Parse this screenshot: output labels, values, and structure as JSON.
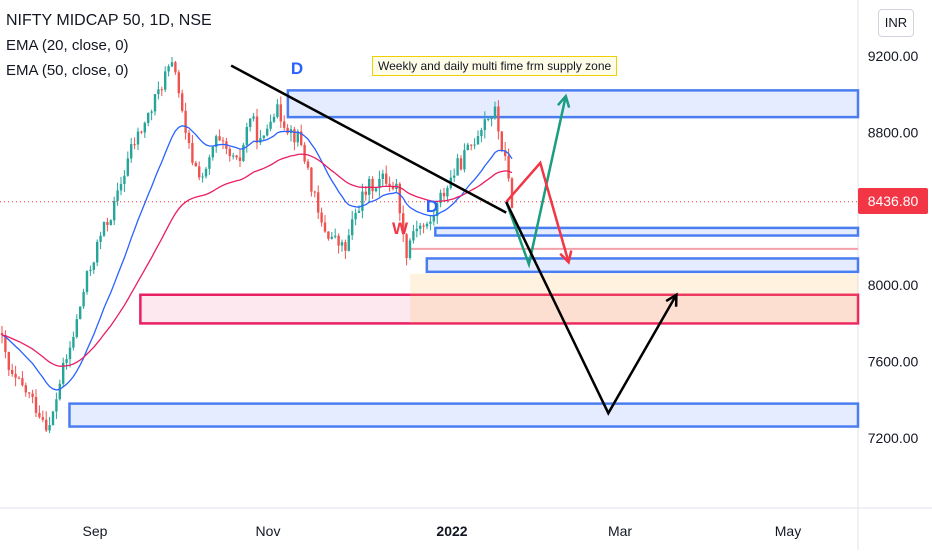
{
  "header": {
    "title": "NIFTY MIDCAP 50, 1D, NSE",
    "ema20": "EMA (20, close, 0)",
    "ema50": "EMA (50, close, 0)",
    "currency": "INR"
  },
  "note": "Weekly and daily multi fime frm supply zone",
  "price_label": "8436.80",
  "markers": {
    "d1": "D",
    "d2": "D",
    "w": "W"
  },
  "colors": {
    "up": "#26a69a",
    "down": "#ef5350",
    "ema20": "#2962ff",
    "ema50": "#e91e63",
    "zone_blue": "#4a7ef0",
    "zone_red": "#e91e63",
    "arrow_green": "#1a9c7f",
    "arrow_red": "#f23645",
    "arrow_black": "#000000"
  },
  "chart_data": {
    "type": "candlestick",
    "title": "NIFTY MIDCAP 50, 1D, NSE",
    "y_ticks": [
      9200,
      8800,
      8000,
      7600,
      7200
    ],
    "y_tick_labels": [
      "9200.00",
      "8800.00",
      "8000.00",
      "7600.00",
      "7200.00"
    ],
    "x_tick_labels": [
      "Sep",
      "Nov",
      "2022",
      "Mar",
      "May"
    ],
    "last_price": 8436.8,
    "series": [
      {
        "name": "EMA (20, close, 0)",
        "color": "#2962ff"
      },
      {
        "name": "EMA (50, close, 0)",
        "color": "#e91e63"
      }
    ],
    "zones": [
      {
        "kind": "supply",
        "from": "2021-11-08",
        "y_range": [
          8880,
          9020
        ]
      },
      {
        "kind": "supply",
        "from": "2021-12-30",
        "y_range": [
          8260,
          8300
        ]
      },
      {
        "kind": "demand",
        "from": "2021-12-27",
        "y_range": [
          8070,
          8140
        ]
      },
      {
        "kind": "demand",
        "from": "2021-09-17",
        "y_range": [
          7800,
          7950
        ]
      },
      {
        "kind": "demand",
        "from": "2021-08-23",
        "y_range": [
          7260,
          7380
        ]
      }
    ],
    "projections": [
      {
        "name": "green",
        "points": [
          [
            "2022-01-24",
            8436
          ],
          [
            "2022-02-01",
            8110
          ],
          [
            "2022-02-14",
            8990
          ]
        ]
      },
      {
        "name": "red",
        "points": [
          [
            "2022-01-24",
            8436
          ],
          [
            "2022-02-05",
            8640
          ],
          [
            "2022-02-15",
            8120
          ]
        ]
      },
      {
        "name": "black",
        "points": [
          [
            "2022-01-24",
            8436
          ],
          [
            "2022-03-01",
            7330
          ],
          [
            "2022-03-25",
            7950
          ]
        ]
      }
    ],
    "trendline": {
      "points": [
        [
          "2021-10-19",
          9150
        ],
        [
          "2022-01-24",
          8380
        ]
      ]
    }
  }
}
